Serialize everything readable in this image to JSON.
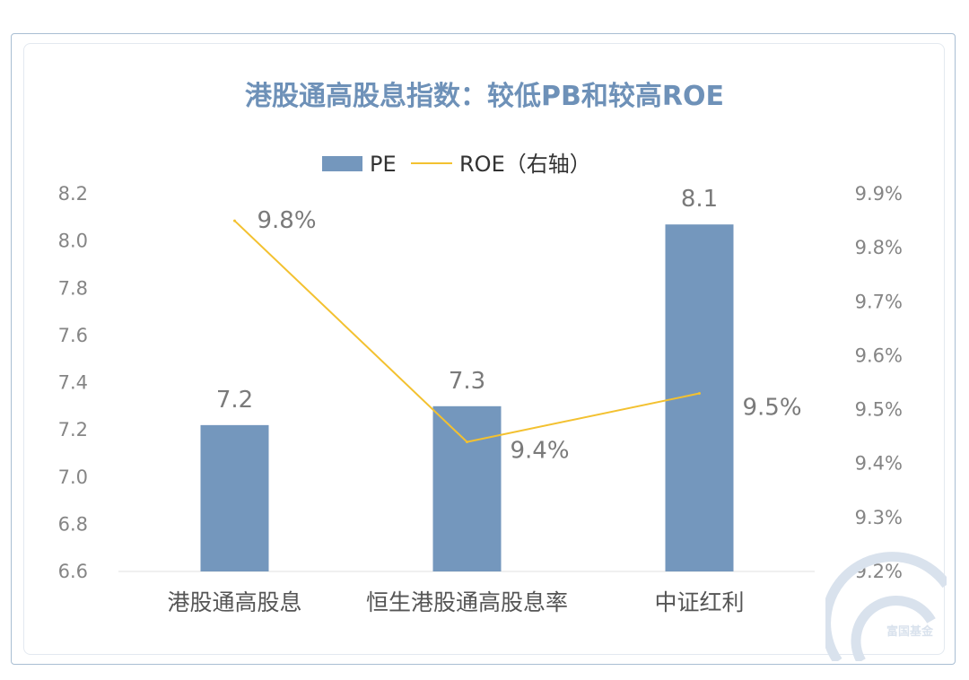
{
  "colors": {
    "bar": "#7497bd",
    "line": "#f3c130",
    "title": "#6e91b8",
    "axis_text": "#858585",
    "label_text": "#7a7a7a",
    "frame": "#a9bed3",
    "watermark": "#d9e2ed"
  },
  "watermark": {
    "text": "富国基金"
  },
  "chart_data": {
    "type": "bar",
    "title": "港股通高股息指数：较低PB和较高ROE",
    "legend": {
      "position": "top-center"
    },
    "categories": [
      "港股通高股息",
      "恒生港股通高股息率",
      "中证红利"
    ],
    "series": [
      {
        "name": "PE",
        "type": "bar",
        "axis": "left",
        "values": [
          7.22,
          7.3,
          8.07
        ],
        "labels": [
          "7.2",
          "7.3",
          "8.1"
        ]
      },
      {
        "name": "ROE（右轴）",
        "type": "line",
        "axis": "right",
        "values": [
          9.85,
          9.44,
          9.53
        ],
        "labels": [
          "9.8%",
          "9.4%",
          "9.5%"
        ]
      }
    ],
    "y_left": {
      "range": [
        6.6,
        8.2
      ],
      "ticks": [
        "6.6",
        "6.8",
        "7.0",
        "7.2",
        "7.4",
        "7.6",
        "7.8",
        "8.0",
        "8.2"
      ]
    },
    "y_right": {
      "range": [
        9.2,
        9.9
      ],
      "ticks": [
        "9.2%",
        "9.3%",
        "9.4%",
        "9.5%",
        "9.6%",
        "9.7%",
        "9.8%",
        "9.9%"
      ]
    },
    "grid": false
  }
}
